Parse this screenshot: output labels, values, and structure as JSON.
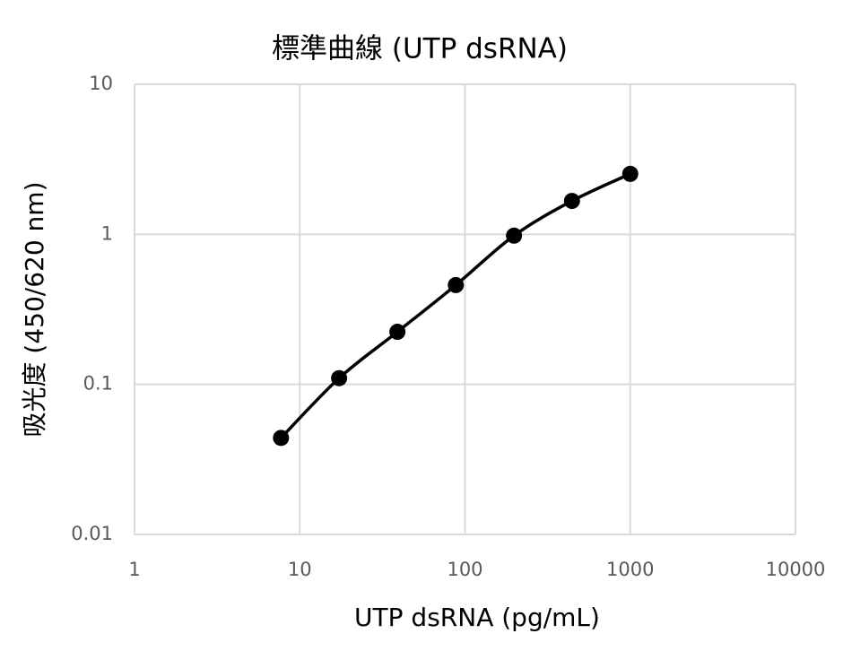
{
  "chart_data": {
    "type": "line",
    "title": "標準曲線 (UTP dsRNA)",
    "x_label": "UTP dsRNA (pg/mL)",
    "y_label": "吸光度 (450/620 nm)",
    "x": [
      7.7,
      17.3,
      39,
      88,
      198,
      444,
      1000
    ],
    "series": [
      {
        "name": "UTP dsRNA",
        "color": "#000000",
        "values": [
          0.044,
          0.11,
          0.224,
          0.459,
          0.98,
          1.67,
          2.53
        ]
      }
    ],
    "xlim": [
      1,
      10000
    ],
    "xticks": [
      1,
      10,
      100,
      1000,
      10000
    ],
    "ylim": [
      0.01,
      10
    ],
    "yticks": [
      0.01,
      0.1,
      1,
      10
    ],
    "xscale": "log",
    "yscale": "log",
    "grid": true
  }
}
